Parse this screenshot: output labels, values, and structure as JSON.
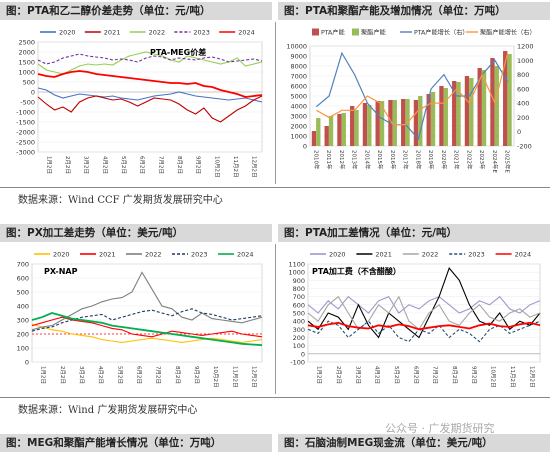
{
  "captions": {
    "c1": "图：PTA和乙二醇价差走势（单位：元/吨）",
    "c2": "图：PTA和聚酯产能及增加情况（单位：万吨）",
    "c3": "图：PX加工差走势（单位：美元/吨）",
    "c4": "图：PTA加工差情况（单位：元/吨）",
    "c5": "图：MEG和聚酯产能增长情况（单位：万吨）",
    "c6": "图：石脑油制MEG现金流（单位：美元/吨）"
  },
  "sources": {
    "s1": "数据来源：Wind CCF 广发期货发展研究中心",
    "s2": "数据来源：Wind 广发期货发展研究中心"
  },
  "watermark": "公众号 · 广发期货研究",
  "colors": {
    "y2020": "#4472c4",
    "y2021": "#c00000",
    "y2022": "#92d050",
    "y2023": "#7030a0",
    "y2024": "#ff0000",
    "red_dark": "#c0504d",
    "green": "#9bbb59",
    "line_blue": "#4f81bd",
    "line_orange": "#f79646"
  },
  "chart_data": [
    {
      "id": "pta-meg-spread",
      "type": "line",
      "title": "PTA-MEG价差",
      "legend_position": "top",
      "ylim": [
        -3000,
        2500
      ],
      "yticks": [
        "2500",
        "2000",
        "1500",
        "1000",
        "500",
        "0",
        "-500",
        "-1000",
        "-1500",
        "-2000",
        "-2500",
        "-3000"
      ],
      "xticks": [
        "1月2日",
        "2月2日",
        "3月2日",
        "4月2日",
        "5月2日",
        "6月2日",
        "7月2日",
        "8月2日",
        "9月2日",
        "10月2日",
        "11月2日",
        "12月2日"
      ],
      "series": [
        {
          "name": "2020",
          "color": "#4472c4",
          "values": [
            200,
            100,
            -150,
            -300,
            -200,
            -100,
            -150,
            -200,
            -250,
            -200,
            -300,
            -350,
            -400,
            -300,
            -200,
            -150,
            -100,
            0,
            -100,
            -200,
            -250,
            -300,
            -350,
            -400,
            -350,
            -300,
            -400,
            -500
          ]
        },
        {
          "name": "2021",
          "color": "#c00000",
          "values": [
            -250,
            -600,
            -900,
            -750,
            -1000,
            -500,
            -300,
            -200,
            -300,
            -400,
            -350,
            -500,
            -700,
            -500,
            -300,
            -350,
            -400,
            -600,
            -900,
            -1100,
            -800,
            -1300,
            -1500,
            -1200,
            -900,
            -700,
            -400,
            -200
          ]
        },
        {
          "name": "2022",
          "color": "#92d050",
          "values": [
            1400,
            1100,
            1000,
            900,
            1100,
            1300,
            1400,
            1350,
            1400,
            1350,
            1600,
            1800,
            1900,
            2000,
            1900,
            1800,
            1600,
            1500,
            1800,
            1700,
            1600,
            1500,
            1400,
            1500,
            1700,
            1300,
            1400,
            1500
          ]
        },
        {
          "name": "2023",
          "color": "#7030a0",
          "values": [
            1600,
            1400,
            1500,
            1700,
            1800,
            1900,
            1800,
            1750,
            1700,
            1600,
            1650,
            1600,
            1500,
            1700,
            1800,
            1750,
            1600,
            1700,
            1650,
            1600,
            1700,
            1750,
            1650,
            1500,
            1550,
            1600,
            1650,
            1550
          ]
        },
        {
          "name": "2024",
          "color": "#ff0000",
          "values": [
            900,
            800,
            750,
            900,
            1000,
            1050,
            1000,
            900,
            850,
            800,
            750,
            700,
            650,
            600,
            550,
            500,
            450,
            450,
            400,
            450,
            300,
            250,
            100,
            0,
            -100,
            -250,
            -200,
            -150
          ]
        }
      ]
    },
    {
      "id": "pta-polyester-capacity",
      "type": "bar",
      "legend_position": "top",
      "categories": [
        "2010年",
        "2011年",
        "2012年",
        "2013年",
        "2014年",
        "2015年",
        "2016年",
        "2017年",
        "2018年",
        "2019年",
        "2020年",
        "2021年",
        "2022年",
        "2023年",
        "2024年E",
        "2025年E"
      ],
      "ylim": [
        0,
        10000
      ],
      "yticks": [
        "10000",
        "9000",
        "8000",
        "7000",
        "6000",
        "5000",
        "4000",
        "3000",
        "2000",
        "1000",
        "0"
      ],
      "y2lim": [
        -200,
        1200
      ],
      "y2ticks": [
        "1200",
        "1000",
        "800",
        "600",
        "400",
        "200",
        "0",
        "-200"
      ],
      "series": [
        {
          "name": "PTA产能",
          "color": "#c0504d",
          "values": [
            1500,
            2000,
            3200,
            4000,
            4300,
            4500,
            4600,
            4700,
            4600,
            5200,
            6000,
            6500,
            7000,
            7800,
            8800,
            9500
          ]
        },
        {
          "name": "聚酯产能",
          "color": "#9bbb59",
          "values": [
            2800,
            3000,
            3300,
            3600,
            4100,
            4500,
            4600,
            4700,
            5000,
            5400,
            5800,
            6400,
            6800,
            7600,
            8000,
            9200
          ]
        },
        {
          "name": "PTA产能增长（右）",
          "color": "#4f81bd",
          "axis": "right",
          "values": [
            350,
            500,
            1100,
            800,
            400,
            200,
            100,
            100,
            -100,
            600,
            800,
            500,
            500,
            800,
            1000,
            700
          ]
        },
        {
          "name": "聚酯产能增长（右）",
          "color": "#f79646",
          "axis": "right",
          "values": [
            300,
            200,
            300,
            300,
            500,
            400,
            100,
            100,
            300,
            400,
            400,
            600,
            400,
            800,
            400,
            1100
          ]
        }
      ]
    },
    {
      "id": "px-processing-spread",
      "type": "line",
      "title": "PX-NAP",
      "legend_position": "top",
      "ylim": [
        0,
        700
      ],
      "yticks": [
        "700",
        "600",
        "500",
        "400",
        "300",
        "200",
        "100",
        "0"
      ],
      "reference_line": 200,
      "xticks": [
        "1月2日",
        "2月2日",
        "3月2日",
        "4月2日",
        "5月2日",
        "6月2日",
        "7月2日",
        "8月2日",
        "9月2日",
        "10月2日",
        "11月2日",
        "12月2日"
      ],
      "series": [
        {
          "name": "2020",
          "color": "#ffc000",
          "values": [
            270,
            250,
            230,
            220,
            200,
            190,
            180,
            160,
            150,
            140,
            150,
            160,
            170,
            160,
            150,
            140,
            150,
            160,
            170,
            160,
            150,
            140,
            150,
            160
          ]
        },
        {
          "name": "2021",
          "color": "#ff0000",
          "values": [
            260,
            280,
            300,
            320,
            300,
            290,
            280,
            260,
            240,
            230,
            200,
            190,
            180,
            200,
            220,
            210,
            200,
            190,
            200,
            210,
            220,
            200,
            190,
            180
          ]
        },
        {
          "name": "2022",
          "color": "#7f7f7f",
          "values": [
            230,
            250,
            260,
            300,
            340,
            380,
            400,
            430,
            450,
            460,
            500,
            640,
            520,
            400,
            380,
            320,
            300,
            350,
            310,
            300,
            290,
            280,
            300,
            320
          ]
        },
        {
          "name": "2023",
          "color": "#1f3864",
          "values": [
            220,
            240,
            250,
            280,
            300,
            320,
            330,
            340,
            300,
            320,
            340,
            360,
            370,
            350,
            330,
            360,
            380,
            350,
            340,
            320,
            300,
            310,
            320,
            330
          ]
        },
        {
          "name": "2024",
          "color": "#00b050",
          "values": [
            300,
            320,
            350,
            330,
            310,
            300,
            290,
            280,
            260,
            250,
            240,
            230,
            220,
            210,
            200,
            190,
            180,
            170,
            160,
            150,
            140,
            130,
            125,
            120
          ]
        }
      ]
    },
    {
      "id": "pta-processing-fee",
      "type": "line",
      "title": "PTA加工费（不含醋酸）",
      "legend_position": "top",
      "ylim": [
        -100,
        1100
      ],
      "yticks": [
        "1100",
        "1000",
        "900",
        "800",
        "700",
        "600",
        "500",
        "400",
        "300",
        "200",
        "100",
        "0",
        "-100"
      ],
      "xticks": [
        "1月2日",
        "2月2日",
        "3月2日",
        "4月2日",
        "5月2日",
        "6月2日",
        "7月2日",
        "8月2日",
        "9月2日",
        "10月2日",
        "11月2日",
        "12月2日"
      ],
      "series": [
        {
          "name": "2020",
          "color": "#9999cc",
          "values": [
            600,
            500,
            650,
            550,
            700,
            600,
            500,
            650,
            700,
            500,
            600,
            550,
            650,
            700,
            600,
            500,
            550,
            650,
            600,
            700,
            550,
            500,
            600,
            650
          ]
        },
        {
          "name": "2021",
          "color": "#000000",
          "values": [
            400,
            300,
            500,
            450,
            300,
            600,
            350,
            200,
            500,
            400,
            300,
            200,
            450,
            700,
            1050,
            900,
            600,
            400,
            350,
            500,
            300,
            400,
            350,
            500
          ]
        },
        {
          "name": "2022",
          "color": "#a6a6a6",
          "values": [
            500,
            400,
            600,
            700,
            500,
            300,
            400,
            600,
            500,
            700,
            400,
            300,
            500,
            600,
            400,
            350,
            500,
            600,
            450,
            400,
            500,
            550,
            450,
            500
          ]
        },
        {
          "name": "2023",
          "color": "#1f4e79",
          "values": [
            300,
            250,
            400,
            350,
            200,
            300,
            400,
            250,
            350,
            200,
            150,
            300,
            250,
            350,
            200,
            300,
            250,
            150,
            300,
            350,
            250,
            300,
            350,
            400
          ]
        },
        {
          "name": "2024",
          "color": "#ff0000",
          "values": [
            350,
            330,
            360,
            380,
            340,
            320,
            310,
            350,
            330,
            360,
            340,
            300,
            320,
            340,
            350,
            330,
            310,
            350,
            370,
            340,
            330,
            360,
            380,
            350
          ]
        }
      ]
    }
  ]
}
